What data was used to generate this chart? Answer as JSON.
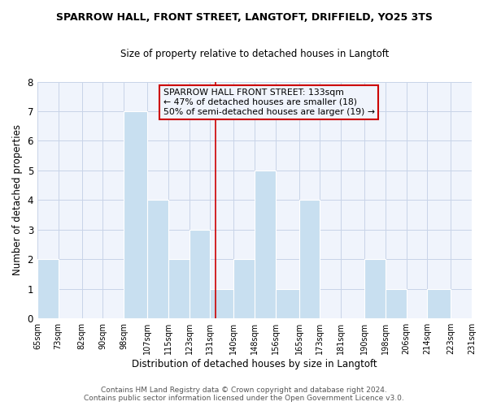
{
  "title": "SPARROW HALL, FRONT STREET, LANGTOFT, DRIFFIELD, YO25 3TS",
  "subtitle": "Size of property relative to detached houses in Langtoft",
  "xlabel": "Distribution of detached houses by size in Langtoft",
  "ylabel": "Number of detached properties",
  "bin_edges": [
    65,
    73,
    82,
    90,
    98,
    107,
    115,
    123,
    131,
    140,
    148,
    156,
    165,
    173,
    181,
    190,
    198,
    206,
    214,
    223,
    231
  ],
  "counts": [
    2,
    0,
    0,
    0,
    7,
    4,
    2,
    3,
    1,
    2,
    5,
    1,
    4,
    0,
    0,
    2,
    1,
    0,
    1,
    0
  ],
  "bar_color": "#c8dff0",
  "bar_edge_color": "#ffffff",
  "grid_color": "#c8d4e8",
  "ref_line_x": 133,
  "ref_line_color": "#cc0000",
  "annotation_lines": [
    "SPARROW HALL FRONT STREET: 133sqm",
    "← 47% of detached houses are smaller (18)",
    "50% of semi-detached houses are larger (19) →"
  ],
  "annotation_box_color": "#cc0000",
  "ylim": [
    0,
    8
  ],
  "yticks": [
    0,
    1,
    2,
    3,
    4,
    5,
    6,
    7,
    8
  ],
  "footer_lines": [
    "Contains HM Land Registry data © Crown copyright and database right 2024.",
    "Contains public sector information licensed under the Open Government Licence v3.0."
  ],
  "bg_color": "#ffffff",
  "plot_bg_color": "#f0f4fc"
}
